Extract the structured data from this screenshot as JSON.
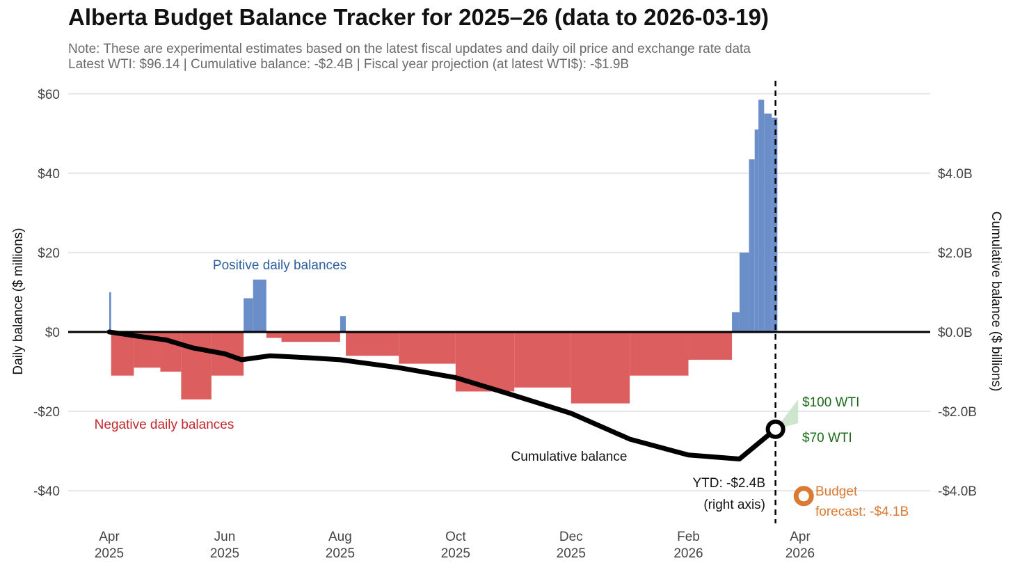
{
  "title": "Alberta Budget Balance Tracker for 2025–26 (data to 2026-03-19)",
  "subtitle": {
    "line1": "Note: These are experimental estimates based on the latest fiscal updates and daily oil price and exchange rate data",
    "line2": "Latest WTI: $96.14 | Cumulative balance: -$2.4B | Fiscal year projection (at latest WTI$): -$1.9B"
  },
  "colors": {
    "positive_bar": "#6a8ec8",
    "negative_bar": "#dd5e5e",
    "cumulative_line": "#000000",
    "positive_text": "#2f5f9e",
    "negative_text": "#c0272d",
    "wti_text": "#1a6a1a",
    "wti_band": "#c9e2c9",
    "budget": "#d97a35",
    "grid": "#e6e6e6"
  },
  "chart_data": {
    "type": "bar",
    "x_start": "2025-04-01",
    "x_end": "2026-04-30",
    "y_left": {
      "label": "Daily balance ($ millions)",
      "range": [
        -47,
        64
      ],
      "ticks": [
        60,
        40,
        20,
        0,
        -20,
        -40
      ],
      "tick_labels": [
        "$60",
        "$40",
        "$20",
        "$0",
        "-$20",
        "-$40"
      ]
    },
    "y_right": {
      "label": "Cumulative balance ($ billions)",
      "range": [
        -4.7,
        6.4
      ],
      "ticks": [
        4.0,
        2.0,
        0.0,
        -2.0,
        -4.0
      ],
      "tick_labels": [
        "$4.0B",
        "$2.0B",
        "$0.0B",
        "-$2.0B",
        "-$4.0B"
      ]
    },
    "x_ticks": [
      {
        "date": "2025-04-01",
        "line1": "Apr",
        "line2": "2025"
      },
      {
        "date": "2025-06-01",
        "line1": "Jun",
        "line2": "2025"
      },
      {
        "date": "2025-08-01",
        "line1": "Aug",
        "line2": "2025"
      },
      {
        "date": "2025-10-01",
        "line1": "Oct",
        "line2": "2025"
      },
      {
        "date": "2025-12-01",
        "line1": "Dec",
        "line2": "2025"
      },
      {
        "date": "2026-02-01",
        "line1": "Feb",
        "line2": "2026"
      },
      {
        "date": "2026-04-01",
        "line1": "Apr",
        "line2": "2026"
      }
    ],
    "daily_balance": [
      {
        "from": "2025-04-01",
        "to": "2025-04-01",
        "value": 10
      },
      {
        "from": "2025-04-02",
        "to": "2025-04-13",
        "value": -11
      },
      {
        "from": "2025-04-14",
        "to": "2025-04-27",
        "value": -9
      },
      {
        "from": "2025-04-28",
        "to": "2025-05-08",
        "value": -10
      },
      {
        "from": "2025-05-09",
        "to": "2025-05-24",
        "value": -17
      },
      {
        "from": "2025-05-25",
        "to": "2025-06-10",
        "value": -11
      },
      {
        "from": "2025-06-11",
        "to": "2025-06-15",
        "value": 8.5
      },
      {
        "from": "2025-06-16",
        "to": "2025-06-22",
        "value": 13.2
      },
      {
        "from": "2025-06-23",
        "to": "2025-06-30",
        "value": -1.5
      },
      {
        "from": "2025-07-01",
        "to": "2025-07-31",
        "value": -2.5
      },
      {
        "from": "2025-08-01",
        "to": "2025-08-03",
        "value": 4
      },
      {
        "from": "2025-08-04",
        "to": "2025-08-31",
        "value": -6
      },
      {
        "from": "2025-09-01",
        "to": "2025-09-30",
        "value": -8
      },
      {
        "from": "2025-10-01",
        "to": "2025-10-31",
        "value": -15
      },
      {
        "from": "2025-11-01",
        "to": "2025-11-30",
        "value": -14
      },
      {
        "from": "2025-12-01",
        "to": "2025-12-31",
        "value": -18
      },
      {
        "from": "2026-01-01",
        "to": "2026-01-31",
        "value": -11
      },
      {
        "from": "2026-02-01",
        "to": "2026-02-23",
        "value": -7
      },
      {
        "from": "2026-02-24",
        "to": "2026-02-27",
        "value": 5
      },
      {
        "from": "2026-02-28",
        "to": "2026-03-04",
        "value": 20
      },
      {
        "from": "2026-03-05",
        "to": "2026-03-07",
        "value": 43.5
      },
      {
        "from": "2026-03-08",
        "to": "2026-03-09",
        "value": 51
      },
      {
        "from": "2026-03-10",
        "to": "2026-03-12",
        "value": 58.5
      },
      {
        "from": "2026-03-13",
        "to": "2026-03-16",
        "value": 55
      },
      {
        "from": "2026-03-17",
        "to": "2026-03-19",
        "value": 54
      }
    ],
    "cumulative_balance": [
      {
        "date": "2025-04-01",
        "value": 0.0
      },
      {
        "date": "2025-04-15",
        "value": -0.1
      },
      {
        "date": "2025-05-01",
        "value": -0.2
      },
      {
        "date": "2025-05-15",
        "value": -0.4
      },
      {
        "date": "2025-06-01",
        "value": -0.55
      },
      {
        "date": "2025-06-10",
        "value": -0.7
      },
      {
        "date": "2025-06-25",
        "value": -0.6
      },
      {
        "date": "2025-07-15",
        "value": -0.65
      },
      {
        "date": "2025-08-01",
        "value": -0.7
      },
      {
        "date": "2025-09-01",
        "value": -0.9
      },
      {
        "date": "2025-10-01",
        "value": -1.15
      },
      {
        "date": "2025-11-01",
        "value": -1.6
      },
      {
        "date": "2025-12-01",
        "value": -2.05
      },
      {
        "date": "2026-01-01",
        "value": -2.7
      },
      {
        "date": "2026-02-01",
        "value": -3.1
      },
      {
        "date": "2026-02-28",
        "value": -3.2
      },
      {
        "date": "2026-03-19",
        "value": -2.45
      }
    ],
    "ytd_point": {
      "date": "2026-03-19",
      "value": -2.45
    },
    "wti_projection": {
      "date": "2026-03-19",
      "low_value": -2.45,
      "end_date": "2026-03-31",
      "end_low": -2.3,
      "end_high": -1.7,
      "low_label": "$70 WTI",
      "high_label": "$100 WTI"
    },
    "budget_forecast": {
      "date": "2026-03-31",
      "value": -4.1
    },
    "annotations": {
      "positive": "Positive daily balances",
      "negative": "Negative daily balances",
      "cumulative": "Cumulative balance",
      "ytd_line1": "YTD: -$2.4B",
      "ytd_line2": "(right axis)",
      "budget_line1": "Budget",
      "budget_line2": "forecast: -$4.1B"
    }
  }
}
